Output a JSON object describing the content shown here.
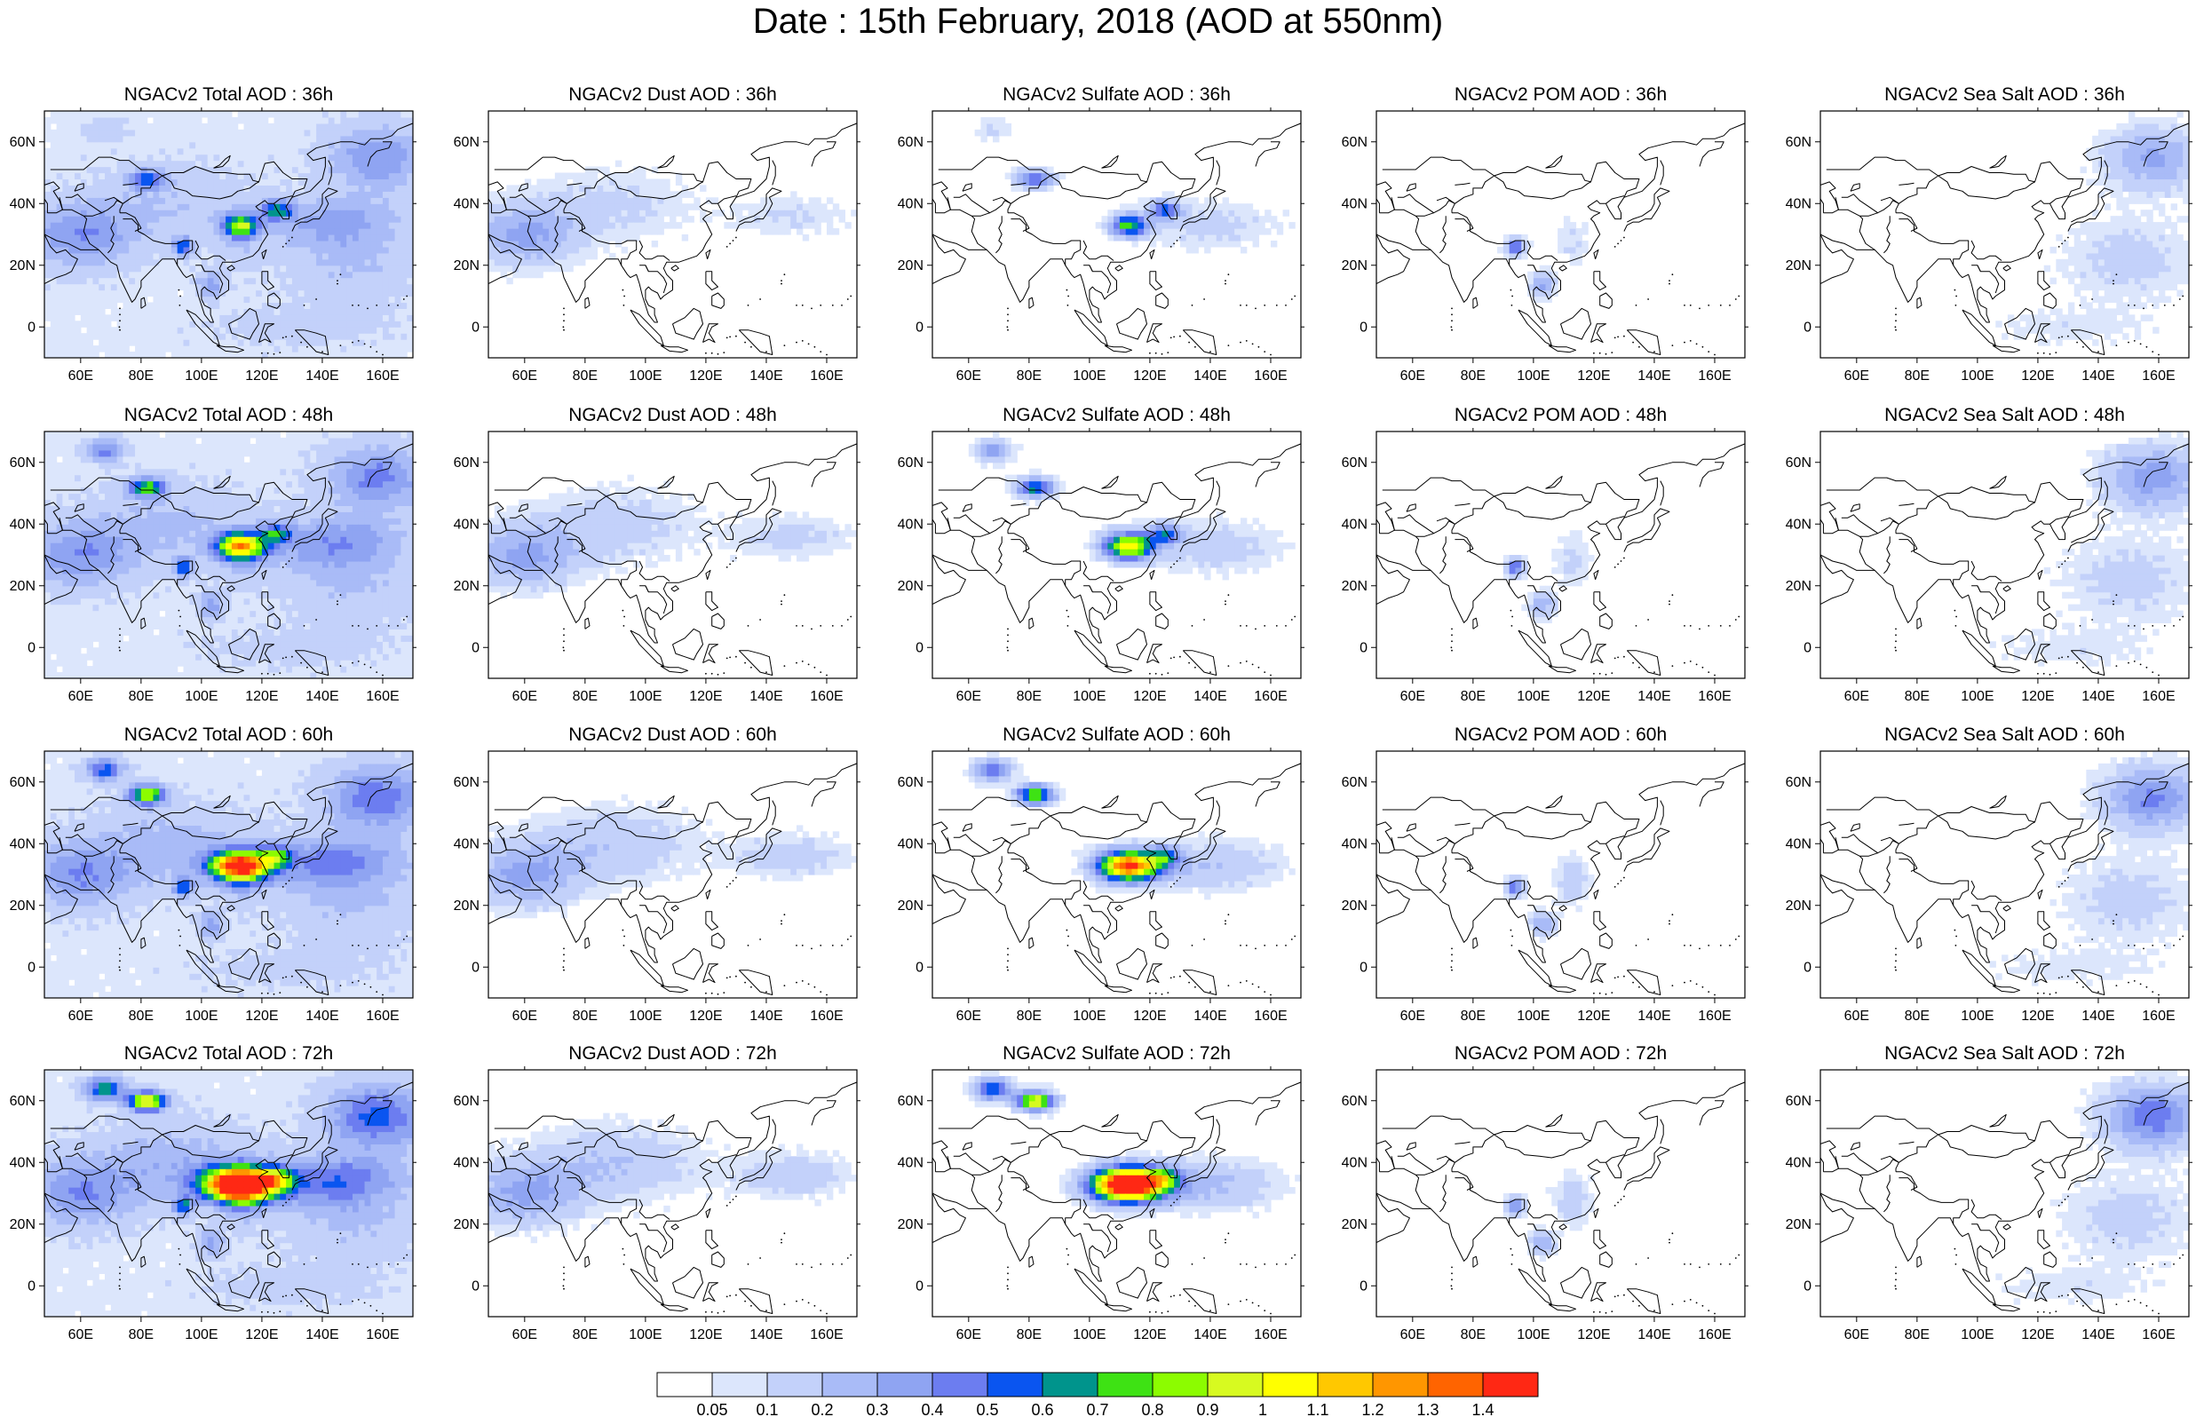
{
  "title": "Date : 15th February, 2018 (AOD at 550nm)",
  "panels": [
    [
      "NGACv2 Total AOD : 36h",
      "NGACv2 Dust AOD : 36h",
      "NGACv2 Sulfate AOD : 36h",
      "NGACv2 POM AOD : 36h",
      "NGACv2 Sea Salt AOD : 36h"
    ],
    [
      "NGACv2 Total AOD : 48h",
      "NGACv2 Dust AOD : 48h",
      "NGACv2 Sulfate AOD : 48h",
      "NGACv2 POM AOD : 48h",
      "NGACv2 Sea Salt AOD : 48h"
    ],
    [
      "NGACv2 Total AOD : 60h",
      "NGACv2 Dust AOD : 60h",
      "NGACv2 Sulfate AOD : 60h",
      "NGACv2 POM AOD : 60h",
      "NGACv2 Sea Salt AOD : 60h"
    ],
    [
      "NGACv2 Total AOD : 72h",
      "NGACv2 Dust AOD : 72h",
      "NGACv2 Sulfate AOD : 72h",
      "NGACv2 POM AOD : 72h",
      "NGACv2 Sea Salt  AOD : 72h"
    ]
  ],
  "x_ticks": [
    "60E",
    "80E",
    "100E",
    "120E",
    "140E",
    "160E"
  ],
  "x_tick_values": [
    60,
    80,
    100,
    120,
    140,
    160
  ],
  "y_ticks": [
    "60N",
    "40N",
    "20N",
    "0"
  ],
  "y_tick_values": [
    60,
    40,
    20,
    0
  ],
  "lon_range": [
    48,
    170
  ],
  "lat_range": [
    -10,
    70
  ],
  "colorbar": {
    "labels": [
      "0.05",
      "0.1",
      "0.2",
      "0.3",
      "0.4",
      "0.5",
      "0.6",
      "0.7",
      "0.8",
      "0.9",
      "1",
      "1.1",
      "1.2",
      "1.3",
      "1.4"
    ],
    "colors": [
      "#ffffff",
      "#dce6fc",
      "#c3d1fa",
      "#a9bbf7",
      "#8fa4f2",
      "#6c7df0",
      "#0a55f0",
      "#00948c",
      "#3ee214",
      "#8cfc00",
      "#d7fa20",
      "#ffff00",
      "#ffc800",
      "#ff9600",
      "#ff6400",
      "#ff2814"
    ]
  }
}
